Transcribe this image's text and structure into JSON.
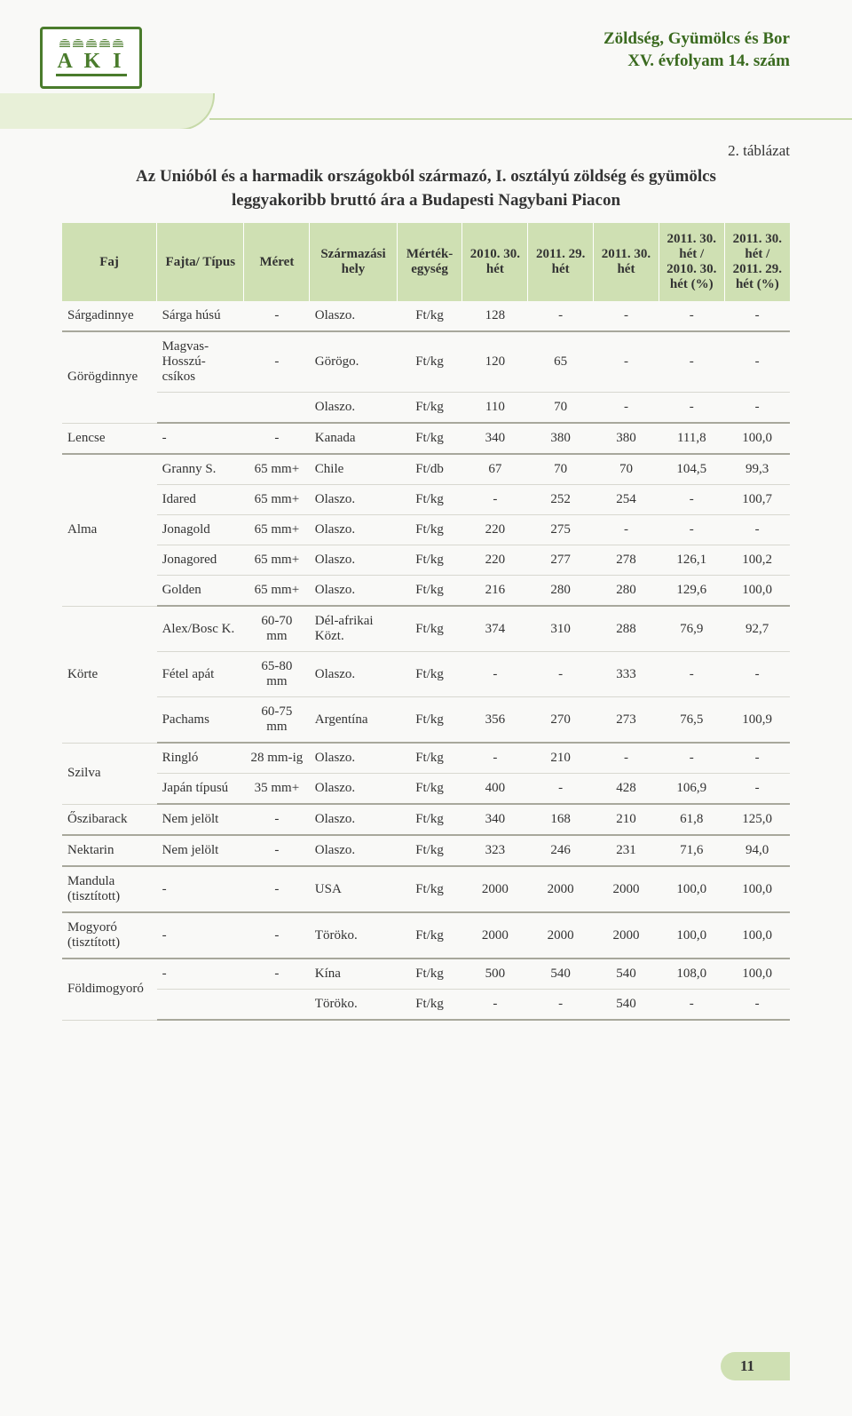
{
  "header": {
    "logo_text": "A K I",
    "title_line1": "Zöldség, Gyümölcs és Bor",
    "title_line2": "XV. évfolyam 14. szám"
  },
  "table_meta": {
    "number": "2. táblázat",
    "title_line1": "Az Unióból és a harmadik országokból származó, I. osztályú zöldség és gyümölcs",
    "title_line2": "leggyakoribb bruttó ára a Budapesti Nagybani Piacon"
  },
  "columns": [
    "Faj",
    "Fajta/ Típus",
    "Méret",
    "Származási hely",
    "Mérték-egység",
    "2010. 30. hét",
    "2011. 29. hét",
    "2011. 30. hét",
    "2011. 30. hét / 2010. 30. hét (%)",
    "2011. 30. hét / 2011. 29. hét (%)"
  ],
  "rows": [
    {
      "faj": "Sárgadinnye",
      "fajta": "Sárga húsú",
      "meret": "-",
      "szarm": "Olaszo.",
      "mertek": "Ft/kg",
      "v1": "128",
      "v2": "-",
      "v3": "-",
      "v4": "-",
      "v5": "-",
      "group_end": true,
      "faj_rowspan": 1
    },
    {
      "faj": "Görögdinnye",
      "fajta": "Magvas-Hosszú-csíkos",
      "meret": "-",
      "szarm": "Görögo.",
      "mertek": "Ft/kg",
      "v1": "120",
      "v2": "65",
      "v3": "-",
      "v4": "-",
      "v5": "-",
      "faj_rowspan": 2
    },
    {
      "fajta": "",
      "meret": "",
      "szarm": "Olaszo.",
      "mertek": "Ft/kg",
      "v1": "110",
      "v2": "70",
      "v3": "-",
      "v4": "-",
      "v5": "-",
      "group_end": true
    },
    {
      "faj": "Lencse",
      "fajta": "-",
      "meret": "-",
      "szarm": "Kanada",
      "mertek": "Ft/kg",
      "v1": "340",
      "v2": "380",
      "v3": "380",
      "v4": "111,8",
      "v5": "100,0",
      "group_end": true,
      "faj_rowspan": 1
    },
    {
      "faj": "Alma",
      "fajta": "Granny S.",
      "meret": "65 mm+",
      "szarm": "Chile",
      "mertek": "Ft/db",
      "v1": "67",
      "v2": "70",
      "v3": "70",
      "v4": "104,5",
      "v5": "99,3",
      "faj_rowspan": 5
    },
    {
      "fajta": "Idared",
      "meret": "65 mm+",
      "szarm": "Olaszo.",
      "mertek": "Ft/kg",
      "v1": "-",
      "v2": "252",
      "v3": "254",
      "v4": "-",
      "v5": "100,7"
    },
    {
      "fajta": "Jonagold",
      "meret": "65 mm+",
      "szarm": "Olaszo.",
      "mertek": "Ft/kg",
      "v1": "220",
      "v2": "275",
      "v3": "-",
      "v4": "-",
      "v5": "-"
    },
    {
      "fajta": "Jonagored",
      "meret": "65 mm+",
      "szarm": "Olaszo.",
      "mertek": "Ft/kg",
      "v1": "220",
      "v2": "277",
      "v3": "278",
      "v4": "126,1",
      "v5": "100,2"
    },
    {
      "fajta": "Golden",
      "meret": "65 mm+",
      "szarm": "Olaszo.",
      "mertek": "Ft/kg",
      "v1": "216",
      "v2": "280",
      "v3": "280",
      "v4": "129,6",
      "v5": "100,0",
      "group_end": true
    },
    {
      "faj": "Körte",
      "fajta": "Alex/Bosc K.",
      "meret": "60-70 mm",
      "szarm": "Dél-afrikai Közt.",
      "mertek": "Ft/kg",
      "v1": "374",
      "v2": "310",
      "v3": "288",
      "v4": "76,9",
      "v5": "92,7",
      "faj_rowspan": 3
    },
    {
      "fajta": "Fétel apát",
      "meret": "65-80 mm",
      "szarm": "Olaszo.",
      "mertek": "Ft/kg",
      "v1": "-",
      "v2": "-",
      "v3": "333",
      "v4": "-",
      "v5": "-"
    },
    {
      "fajta": "Pachams",
      "meret": "60-75 mm",
      "szarm": "Argentína",
      "mertek": "Ft/kg",
      "v1": "356",
      "v2": "270",
      "v3": "273",
      "v4": "76,5",
      "v5": "100,9",
      "group_end": true
    },
    {
      "faj": "Szilva",
      "fajta": "Ringló",
      "meret": "28 mm-ig",
      "szarm": "Olaszo.",
      "mertek": "Ft/kg",
      "v1": "-",
      "v2": "210",
      "v3": "-",
      "v4": "-",
      "v5": "-",
      "faj_rowspan": 2
    },
    {
      "fajta": "Japán típusú",
      "meret": "35 mm+",
      "szarm": "Olaszo.",
      "mertek": "Ft/kg",
      "v1": "400",
      "v2": "-",
      "v3": "428",
      "v4": "106,9",
      "v5": "-",
      "group_end": true
    },
    {
      "faj": "Őszibarack",
      "fajta": "Nem jelölt",
      "meret": "-",
      "szarm": "Olaszo.",
      "mertek": "Ft/kg",
      "v1": "340",
      "v2": "168",
      "v3": "210",
      "v4": "61,8",
      "v5": "125,0",
      "group_end": true,
      "faj_rowspan": 1
    },
    {
      "faj": "Nektarin",
      "fajta": "Nem jelölt",
      "meret": "-",
      "szarm": "Olaszo.",
      "mertek": "Ft/kg",
      "v1": "323",
      "v2": "246",
      "v3": "231",
      "v4": "71,6",
      "v5": "94,0",
      "group_end": true,
      "faj_rowspan": 1
    },
    {
      "faj": "Mandula (tisztított)",
      "fajta": "-",
      "meret": "-",
      "szarm": "USA",
      "mertek": "Ft/kg",
      "v1": "2000",
      "v2": "2000",
      "v3": "2000",
      "v4": "100,0",
      "v5": "100,0",
      "group_end": true,
      "faj_rowspan": 1
    },
    {
      "faj": "Mogyoró (tisztított)",
      "fajta": "-",
      "meret": "-",
      "szarm": "Töröko.",
      "mertek": "Ft/kg",
      "v1": "2000",
      "v2": "2000",
      "v3": "2000",
      "v4": "100,0",
      "v5": "100,0",
      "group_end": true,
      "faj_rowspan": 1
    },
    {
      "faj": "Földimogyoró",
      "fajta": "-",
      "meret": "-",
      "szarm": "Kína",
      "mertek": "Ft/kg",
      "v1": "500",
      "v2": "540",
      "v3": "540",
      "v4": "108,0",
      "v5": "100,0",
      "faj_rowspan": 2
    },
    {
      "fajta": "",
      "meret": "",
      "szarm": "Töröko.",
      "mertek": "Ft/kg",
      "v1": "-",
      "v2": "-",
      "v3": "540",
      "v4": "-",
      "v5": "-",
      "group_end": true
    }
  ],
  "page_number": "11",
  "styling": {
    "header_bg": "#cfe0b3",
    "header_text_color": "#3a6a1f",
    "row_border": "#d8d8d0",
    "group_border": "#a8a89c",
    "logo_color": "#4a7c2c",
    "body_bg": "#f9f9f7",
    "font_body_pt": 15,
    "font_title_pt": 19
  }
}
